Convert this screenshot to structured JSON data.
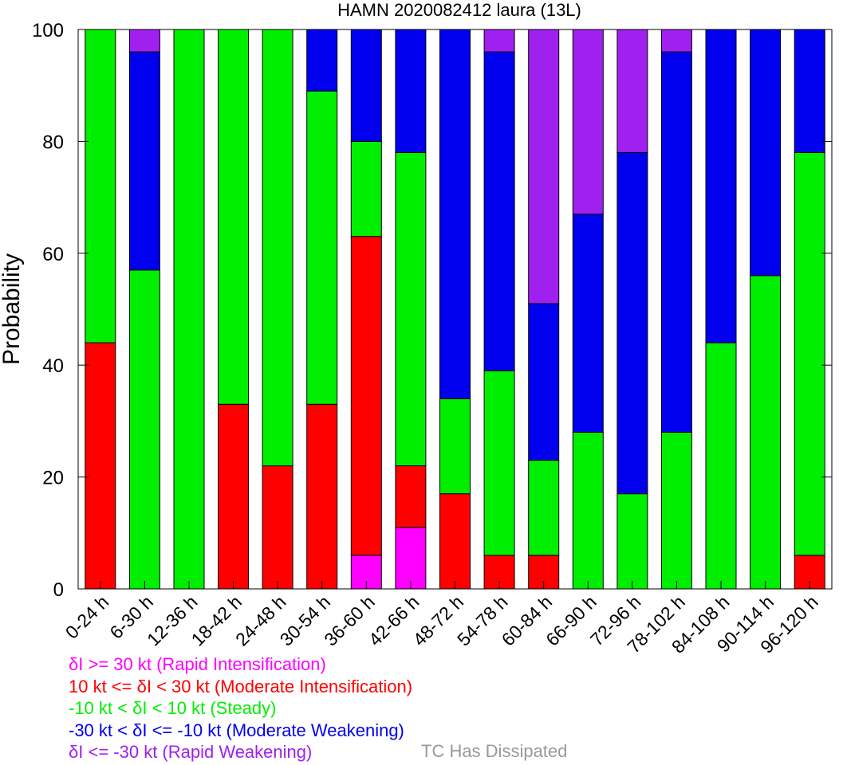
{
  "chart_data": {
    "type": "bar",
    "stacked": true,
    "title": "HAMN 2020082412 laura (13L)",
    "ylabel": "Probability",
    "ylim": [
      0,
      100
    ],
    "yticks": [
      0,
      20,
      40,
      60,
      80,
      100
    ],
    "categories": [
      "0-24 h",
      "6-30 h",
      "12-36 h",
      "18-42 h",
      "24-48 h",
      "30-54 h",
      "36-60 h",
      "42-66 h",
      "48-72 h",
      "54-78 h",
      "60-84 h",
      "66-90 h",
      "72-96 h",
      "78-102 h",
      "84-108 h",
      "90-114 h",
      "96-120 h"
    ],
    "series": [
      {
        "key": "ri",
        "color": "#ff00ff",
        "values": [
          0,
          0,
          0,
          0,
          0,
          0,
          6,
          11,
          0,
          0,
          0,
          0,
          0,
          0,
          0,
          0,
          0
        ]
      },
      {
        "key": "mi",
        "color": "#ff0000",
        "values": [
          44,
          0,
          0,
          33,
          22,
          33,
          57,
          11,
          17,
          6,
          6,
          0,
          0,
          0,
          0,
          0,
          6
        ]
      },
      {
        "key": "st",
        "color": "#00ee00",
        "values": [
          56,
          57,
          100,
          67,
          78,
          56,
          17,
          56,
          17,
          33,
          17,
          28,
          17,
          28,
          44,
          56,
          72
        ]
      },
      {
        "key": "mw",
        "color": "#0000ee",
        "values": [
          0,
          39,
          0,
          0,
          0,
          11,
          20,
          22,
          66,
          57,
          28,
          39,
          61,
          68,
          56,
          44,
          22
        ]
      },
      {
        "key": "rw",
        "color": "#a020f0",
        "values": [
          0,
          4,
          0,
          0,
          0,
          0,
          0,
          0,
          0,
          4,
          49,
          33,
          22,
          4,
          0,
          0,
          0
        ]
      }
    ],
    "legend": {
      "placement": "bottom-left",
      "entries": [
        {
          "text": "δI >= 30 kt (Rapid Intensification)",
          "color": "#ff00ff"
        },
        {
          "text": "10 kt <= δI < 30 kt (Moderate Intensification)",
          "color": "#ff0000"
        },
        {
          "text": "-10 kt < δI < 10 kt (Steady)",
          "color": "#00ee00"
        },
        {
          "text": "-30 kt < δI <= -10 kt (Moderate Weakening)",
          "color": "#0000ee"
        },
        {
          "text": "δI <= -30 kt (Rapid Weakening)",
          "color": "#a020f0"
        }
      ],
      "dissipated": {
        "text": "TC Has Dissipated",
        "color": "#999999"
      }
    },
    "grid": false
  }
}
